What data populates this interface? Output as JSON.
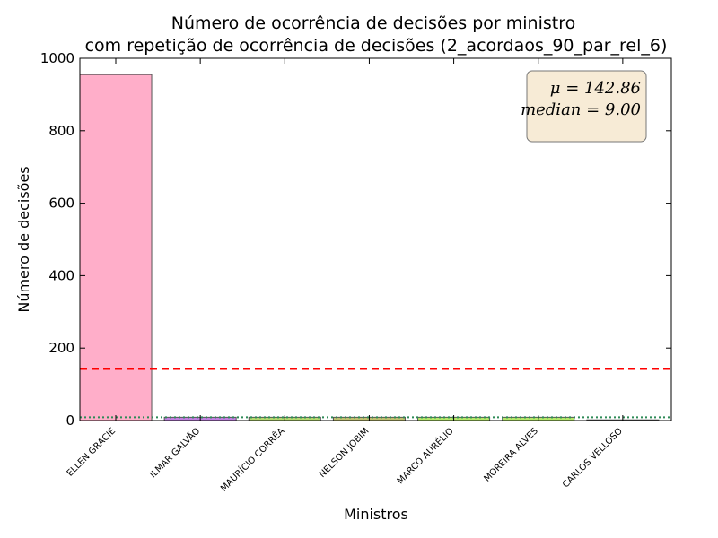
{
  "chart_data": {
    "type": "bar",
    "title": "Número de ocorrência de decisões por ministro",
    "subtitle": "com repetição de ocorrência de decisões (2_acordaos_90_par_rel_6)",
    "xlabel": "Ministros",
    "ylabel": "Número de decisões",
    "ylim": [
      0,
      1000
    ],
    "yticks": [
      0,
      200,
      400,
      600,
      800,
      1000
    ],
    "grid": false,
    "categories": [
      "ELLEN GRACIE",
      "ILMAR GALVÃO",
      "MAURÍCIO CORRÊA",
      "NELSON JOBIM",
      "MARCO AURÉLIO",
      "MOREIRA ALVES",
      "CARLOS VELLOSO"
    ],
    "values": [
      955,
      9,
      9,
      9,
      9,
      9,
      2
    ],
    "bar_colors": [
      "#ffaec9",
      "#c080e0",
      "#b5d86f",
      "#c0c070",
      "#b5e86a",
      "#b5e86a",
      "#a0e0a0"
    ],
    "mean_line": {
      "value": 142.86,
      "color": "#ff0000",
      "style": "dashed"
    },
    "median_line": {
      "value": 9.0,
      "color": "#2e8b57",
      "style": "dotted"
    },
    "stats_box": {
      "mu_label": "μ = 142.86",
      "median_label": "median = 9.00",
      "placement": "top-right",
      "background": "#f7ebd6"
    }
  }
}
